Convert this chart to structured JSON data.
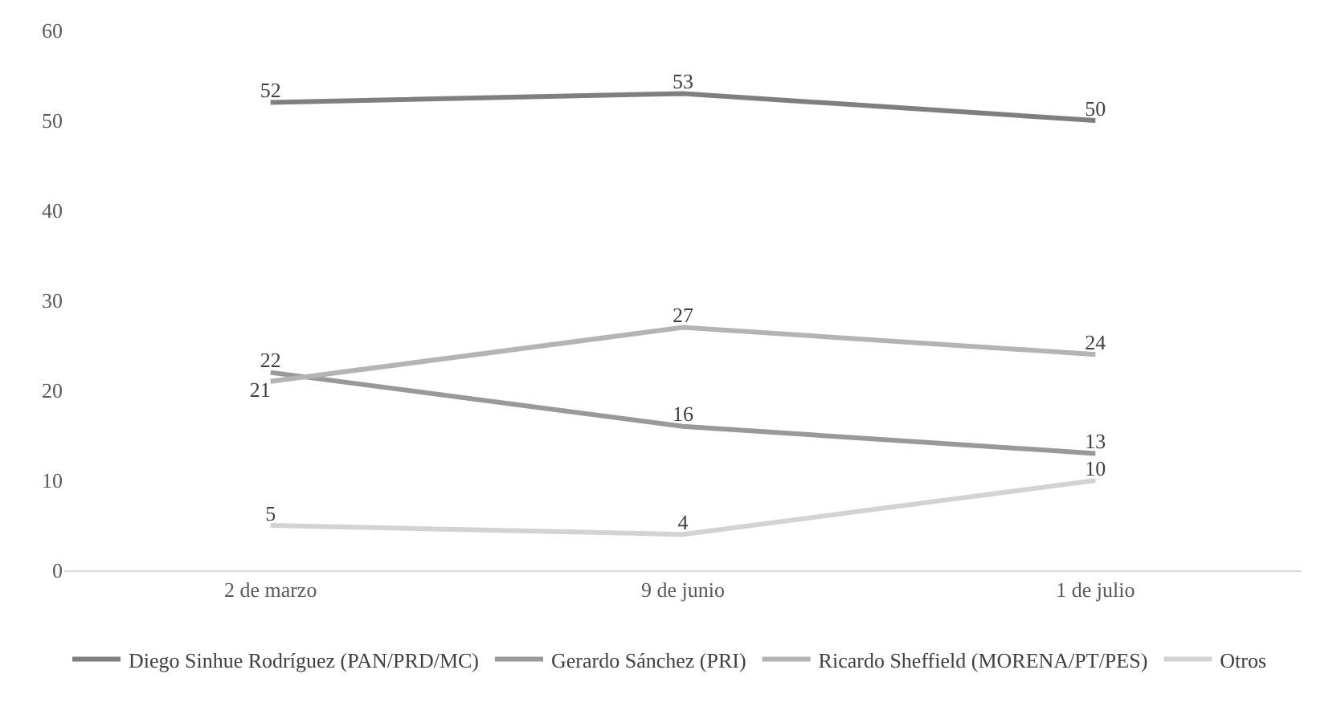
{
  "chart_data": {
    "type": "line",
    "categories": [
      "2 de marzo",
      "9 de junio",
      "1 de julio"
    ],
    "series": [
      {
        "name": "Diego Sinhue Rodríguez (PAN/PRD/MC)",
        "color": "#7f7f7f",
        "values": [
          52,
          53,
          50
        ]
      },
      {
        "name": "Gerardo Sánchez (PRI)",
        "color": "#999999",
        "values": [
          22,
          16,
          13
        ]
      },
      {
        "name": "Ricardo Sheffield (MORENA/PT/PES)",
        "color": "#b4b4b4",
        "values": [
          21,
          27,
          24
        ]
      },
      {
        "name": "Otros",
        "color": "#d3d3d3",
        "values": [
          5,
          4,
          10
        ]
      }
    ],
    "ylim": [
      0,
      60
    ],
    "yticks": [
      0,
      10,
      20,
      30,
      40,
      50,
      60
    ],
    "grid": false,
    "legend": "bottom",
    "marker": "none",
    "line_style": "solid",
    "data_labels": true
  }
}
